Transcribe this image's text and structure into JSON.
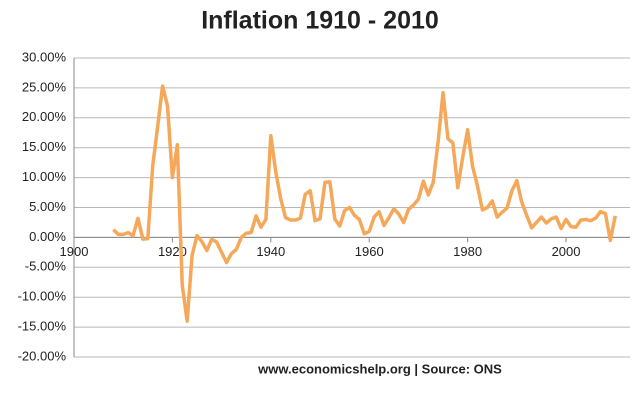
{
  "chart_data": {
    "type": "line",
    "title": "Inflation 1910  - 2010",
    "annotation": "www.economicshelp.org | Source: ONS",
    "x": [
      1908,
      1909,
      1910,
      1911,
      1912,
      1913,
      1914,
      1915,
      1916,
      1917,
      1918,
      1919,
      1920,
      1921,
      1922,
      1923,
      1924,
      1925,
      1926,
      1927,
      1928,
      1929,
      1930,
      1931,
      1932,
      1933,
      1934,
      1935,
      1936,
      1937,
      1938,
      1939,
      1940,
      1941,
      1942,
      1943,
      1944,
      1945,
      1946,
      1947,
      1948,
      1949,
      1950,
      1951,
      1952,
      1953,
      1954,
      1955,
      1956,
      1957,
      1958,
      1959,
      1960,
      1961,
      1962,
      1963,
      1964,
      1965,
      1966,
      1967,
      1968,
      1969,
      1970,
      1971,
      1972,
      1973,
      1974,
      1975,
      1976,
      1977,
      1978,
      1979,
      1980,
      1981,
      1982,
      1983,
      1984,
      1985,
      1986,
      1987,
      1988,
      1989,
      1990,
      1991,
      1992,
      1993,
      1994,
      1995,
      1996,
      1997,
      1998,
      1999,
      2000,
      2001,
      2002,
      2003,
      2004,
      2005,
      2006,
      2007,
      2008,
      2009,
      2010
    ],
    "series": [
      {
        "color": "#f5a85a",
        "values": [
          1.3,
          0.5,
          0.5,
          0.8,
          0.3,
          3.2,
          -0.3,
          -0.2,
          12,
          18.5,
          25.3,
          22,
          10,
          15.5,
          -8,
          -14,
          -3,
          0.3,
          -0.7,
          -2.2,
          -0.3,
          -0.8,
          -2.5,
          -4.2,
          -2.7,
          -2,
          0,
          0.7,
          0.8,
          3.6,
          1.7,
          3,
          17,
          11,
          6.5,
          3.3,
          2.9,
          2.9,
          3.2,
          7.2,
          7.8,
          2.8,
          3.1,
          9.2,
          9.3,
          3.1,
          1.9,
          4.5,
          5,
          3.7,
          3,
          0.6,
          1,
          3.4,
          4.3,
          2,
          3.3,
          4.8,
          3.9,
          2.5,
          4.7,
          5.4,
          6.4,
          9.4,
          7.1,
          9.2,
          16,
          24.2,
          16.5,
          15.8,
          8.3,
          13.4,
          18,
          11.9,
          8.6,
          4.6,
          5,
          6.1,
          3.4,
          4.2,
          4.9,
          7.8,
          9.5,
          5.9,
          3.7,
          1.6,
          2.5,
          3.4,
          2.4,
          3.1,
          3.4,
          1.5,
          3,
          1.8,
          1.7,
          2.9,
          3,
          2.8,
          3.2,
          4.3,
          4,
          -0.5,
          3.6
        ]
      }
    ],
    "xlim": [
      1900,
      2013
    ],
    "xticks": [
      1900,
      1920,
      1940,
      1960,
      1980,
      2000
    ],
    "ylim": [
      -20,
      30
    ],
    "yticks": [
      {
        "value": -20,
        "label": "-20.00%"
      },
      {
        "value": -15,
        "label": "-15.00%"
      },
      {
        "value": -10,
        "label": "-10.00%"
      },
      {
        "value": -5,
        "label": "-5.00%"
      },
      {
        "value": 0,
        "label": "0.00%"
      },
      {
        "value": 5,
        "label": "5.00%"
      },
      {
        "value": 10,
        "label": "10.00%"
      },
      {
        "value": 15,
        "label": "15.00%"
      },
      {
        "value": 20,
        "label": "20.00%"
      },
      {
        "value": 25,
        "label": "25.00%"
      },
      {
        "value": 30,
        "label": "30.00%"
      }
    ],
    "grid": true
  }
}
